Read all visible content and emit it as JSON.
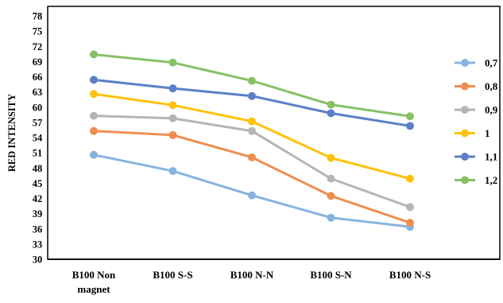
{
  "chart_data": {
    "type": "line",
    "title": "",
    "xlabel": "",
    "ylabel": "RED INTENSITY",
    "categories": [
      [
        "B100 Non",
        "magnet"
      ],
      [
        "B100 S-S"
      ],
      [
        "B100 N-N"
      ],
      [
        "B100 S-N"
      ],
      [
        "B100 N-S"
      ]
    ],
    "ylim": [
      30,
      78
    ],
    "yticks": [
      30,
      33,
      36,
      39,
      42,
      45,
      48,
      51,
      54,
      57,
      60,
      63,
      66,
      69,
      72,
      75,
      78
    ],
    "grid": false,
    "legend_position": "right",
    "series": [
      {
        "name": "0,7",
        "color": "#87B4E0",
        "values": [
          50.6,
          47.4,
          42.6,
          38.2,
          36.4
        ]
      },
      {
        "name": "0,8",
        "color": "#EE8E50",
        "values": [
          55.3,
          54.5,
          50.1,
          42.5,
          37.2
        ]
      },
      {
        "name": "0,9",
        "color": "#B5B5B5",
        "values": [
          58.3,
          57.8,
          55.3,
          45.9,
          40.3
        ]
      },
      {
        "name": "1",
        "color": "#FFC20E",
        "values": [
          62.6,
          60.4,
          57.2,
          50.0,
          45.9
        ]
      },
      {
        "name": "1,1",
        "color": "#5B80C8",
        "values": [
          65.4,
          63.7,
          62.2,
          58.8,
          56.3
        ]
      },
      {
        "name": "1,2",
        "color": "#86C168",
        "values": [
          70.4,
          68.8,
          65.2,
          60.5,
          58.2
        ]
      }
    ]
  }
}
